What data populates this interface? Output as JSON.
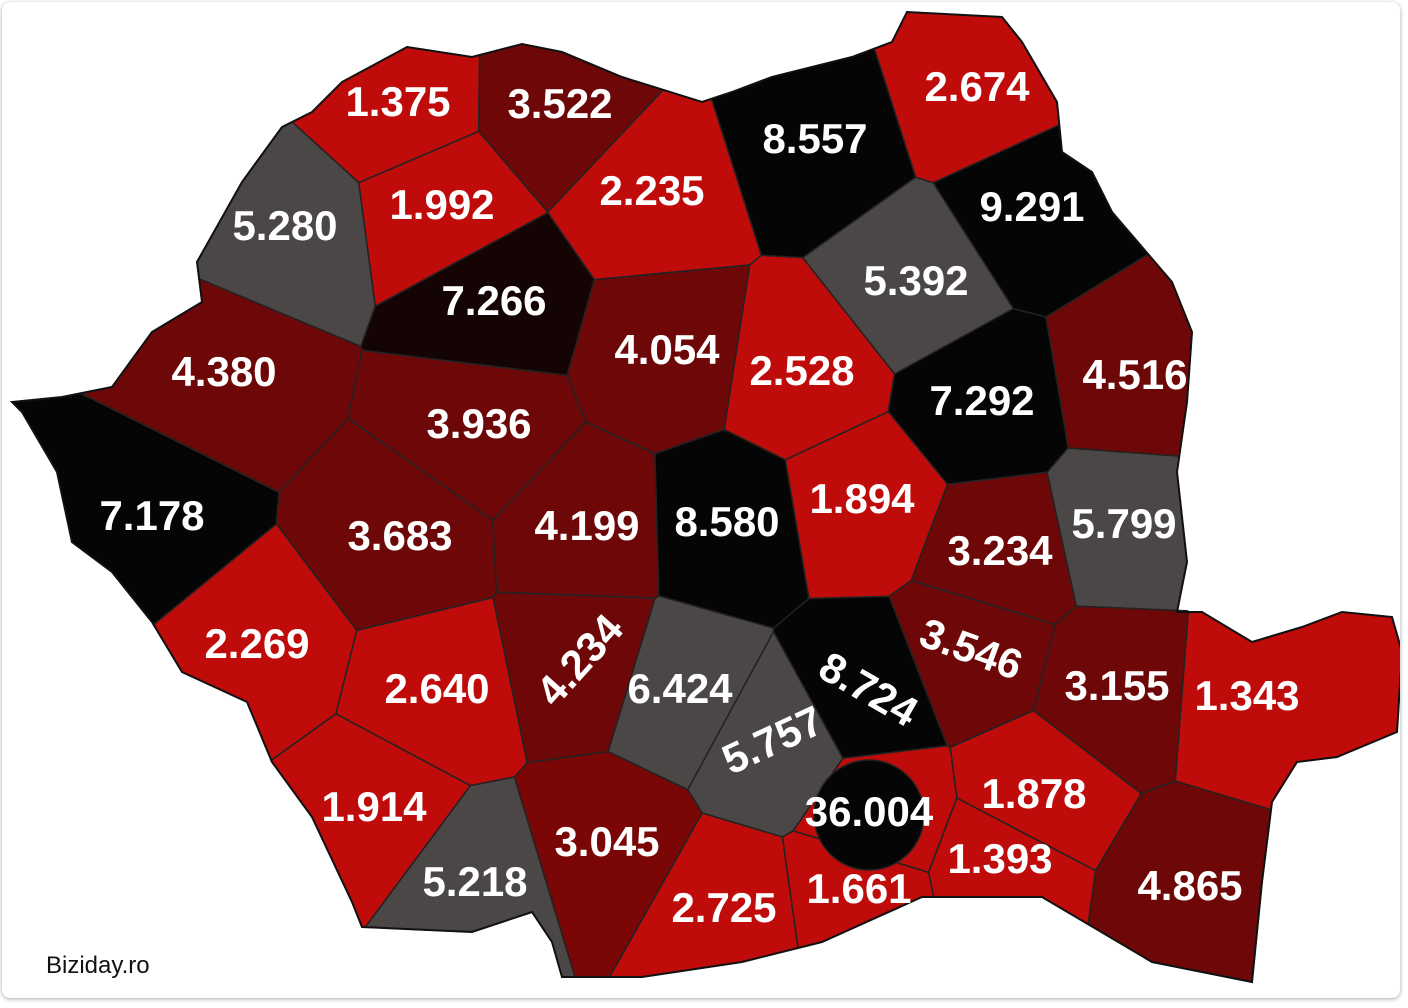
{
  "credit": "Biziday.ro",
  "regions": [
    {
      "label": "1.375",
      "color": "#c00b0b"
    },
    {
      "label": "3.522",
      "color": "#6e0808"
    },
    {
      "label": "2.674",
      "color": "#c00b0b"
    },
    {
      "label": "8.557",
      "color": "#050505"
    },
    {
      "label": "1.992",
      "color": "#c00b0b"
    },
    {
      "label": "2.235",
      "color": "#c00b0b"
    },
    {
      "label": "5.280",
      "color": "#4b4747"
    },
    {
      "label": "9.291",
      "color": "#050505"
    },
    {
      "label": "7.266",
      "color": "#140404"
    },
    {
      "label": "5.392",
      "color": "#4b4747"
    },
    {
      "label": "4.054",
      "color": "#6e0808"
    },
    {
      "label": "2.528",
      "color": "#c00b0b"
    },
    {
      "label": "4.380",
      "color": "#6e0808"
    },
    {
      "label": "4.516",
      "color": "#6e0808"
    },
    {
      "label": "7.292",
      "color": "#050505"
    },
    {
      "label": "3.936",
      "color": "#6e0808"
    },
    {
      "label": "7.178",
      "color": "#050505"
    },
    {
      "label": "3.683",
      "color": "#6e0808"
    },
    {
      "label": "4.199",
      "color": "#6e0808"
    },
    {
      "label": "8.580",
      "color": "#050505"
    },
    {
      "label": "1.894",
      "color": "#c00b0b"
    },
    {
      "label": "3.234",
      "color": "#6e0808"
    },
    {
      "label": "5.799",
      "color": "#4b4747"
    },
    {
      "label": "2.269",
      "color": "#c00b0b"
    },
    {
      "label": "2.640",
      "color": "#c00b0b"
    },
    {
      "label": "4.234",
      "color": "#6e0808"
    },
    {
      "label": "6.424",
      "color": "#4b4747"
    },
    {
      "label": "3.546",
      "color": "#6e0808"
    },
    {
      "label": "8.724",
      "color": "#050505"
    },
    {
      "label": "3.155",
      "color": "#6e0808"
    },
    {
      "label": "1.343",
      "color": "#c00b0b"
    },
    {
      "label": "5.757",
      "color": "#4b4747"
    },
    {
      "label": "1.914",
      "color": "#c00b0b"
    },
    {
      "label": "36.004",
      "color": "#050505"
    },
    {
      "label": "1.878",
      "color": "#c00b0b"
    },
    {
      "label": "3.045",
      "color": "#7a0606"
    },
    {
      "label": "5.218",
      "color": "#4b4747"
    },
    {
      "label": "1.393",
      "color": "#c00b0b"
    },
    {
      "label": "4.865",
      "color": "#6e0808"
    },
    {
      "label": "2.725",
      "color": "#c00b0b"
    },
    {
      "label": "1.661",
      "color": "#c00b0b"
    }
  ]
}
